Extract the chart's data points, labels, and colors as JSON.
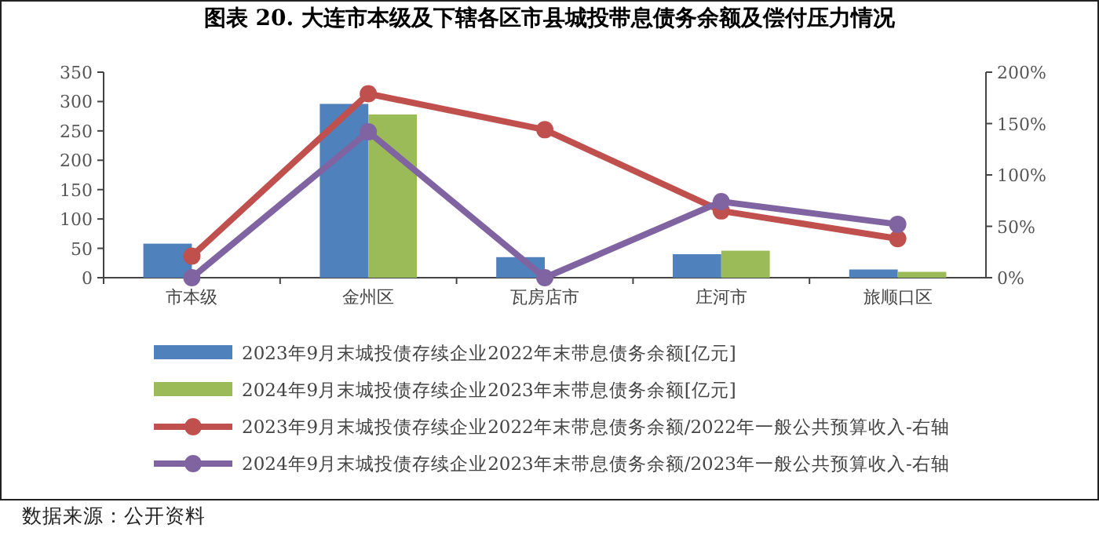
{
  "chart_data": {
    "type": "bar",
    "title": "图表 20. 大连市本级及下辖各区市县城投带息债务余额及偿付压力情况",
    "categories": [
      "市本级",
      "金州区",
      "瓦房店市",
      "庄河市",
      "旅顺口区"
    ],
    "series": [
      {
        "name": "2023年9月末城投债存续企业2022年末带息债务余额[亿元]",
        "color": "#4f81bd",
        "values": [
          58,
          296,
          35,
          40,
          14
        ]
      },
      {
        "name": "2024年9月末城投债存续企业2023年末带息债务余额[亿元]",
        "color": "#9bbb59",
        "values": [
          null,
          278,
          null,
          46,
          10
        ]
      },
      {
        "name": "2023年9月末城投债存续企业2022年末带息债务余额/2022年一般公共预算收入-右轴",
        "type": "line",
        "axis": "y2",
        "color": "#c0504d",
        "values": [
          21,
          179,
          144,
          65,
          38
        ]
      },
      {
        "name": "2024年9月末城投债存续企业2023年末带息债务余额/2023年一般公共预算收入-右轴",
        "type": "line",
        "axis": "y2",
        "color": "#8064a2",
        "values": [
          0,
          142,
          0,
          74,
          52
        ]
      }
    ],
    "ylim": [
      0,
      350
    ],
    "yticks": [
      0,
      50,
      100,
      150,
      200,
      250,
      300,
      350
    ],
    "y2lim": [
      0,
      200
    ],
    "y2ticks": [
      {
        "value": 0,
        "label": "0%"
      },
      {
        "value": 50,
        "label": "50%"
      },
      {
        "value": 100,
        "label": "100%"
      },
      {
        "value": 150,
        "label": "150%"
      },
      {
        "value": 200,
        "label": "200%"
      }
    ],
    "marker": "circle",
    "legend": "bottom",
    "grid": false,
    "annotations": [
      "数据来源：公开资料"
    ]
  }
}
